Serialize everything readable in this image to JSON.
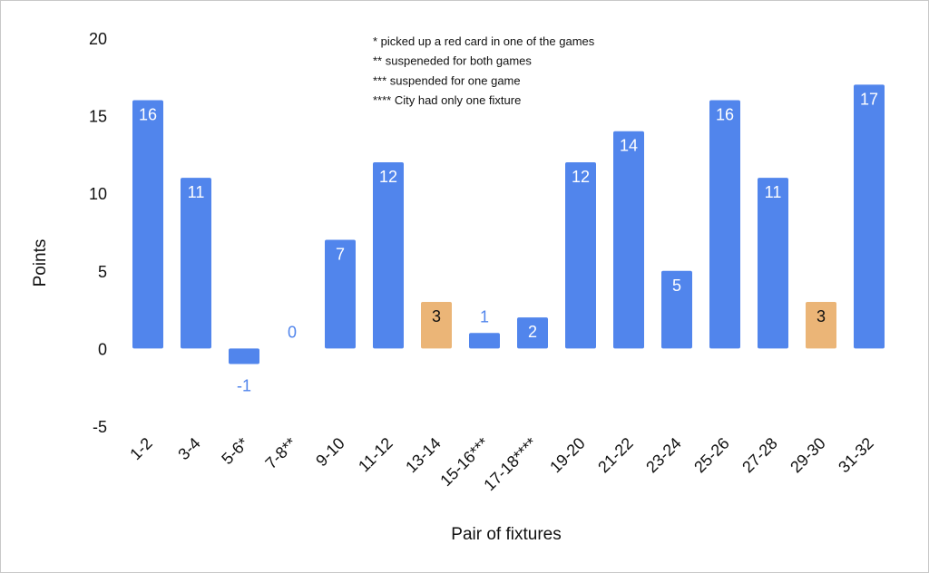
{
  "chart_data": {
    "type": "bar",
    "title": "",
    "xlabel": "Pair of fixtures",
    "ylabel": "Points",
    "ylim": [
      -5,
      20
    ],
    "yticks": [
      "20",
      "15",
      "10",
      "5",
      "0",
      "-5"
    ],
    "categories": [
      "1-2",
      "3-4",
      "5-6*",
      "7-8**",
      "9-10",
      "11-12",
      "13-14",
      "15-16***",
      "17-18****",
      "19-20",
      "21-22",
      "23-24",
      "25-26",
      "27-28",
      "29-30",
      "31-32"
    ],
    "values": [
      16,
      11,
      -1,
      0,
      7,
      12,
      3,
      1,
      2,
      12,
      14,
      5,
      16,
      11,
      3,
      17
    ],
    "data_labels": [
      "16",
      "11",
      "-1",
      "0",
      "7",
      "12",
      "3",
      "1",
      "2",
      "12",
      "14",
      "5",
      "16",
      "11",
      "3",
      "17"
    ],
    "highlighted": [
      false,
      false,
      false,
      false,
      false,
      false,
      true,
      false,
      false,
      false,
      false,
      false,
      false,
      false,
      true,
      false
    ],
    "colors": {
      "bar": "#5185ec",
      "highlight": "#ebb577",
      "label_inside": "#ffffff",
      "label_inside_highlight": "#111111",
      "label_outside": "#5185ec"
    },
    "grid": false,
    "legend": "none",
    "annotations": [
      "* picked up a red card in one of the games",
      "** suspeneded for both games",
      "*** suspended for one game",
      "**** City had only one fixture"
    ]
  }
}
